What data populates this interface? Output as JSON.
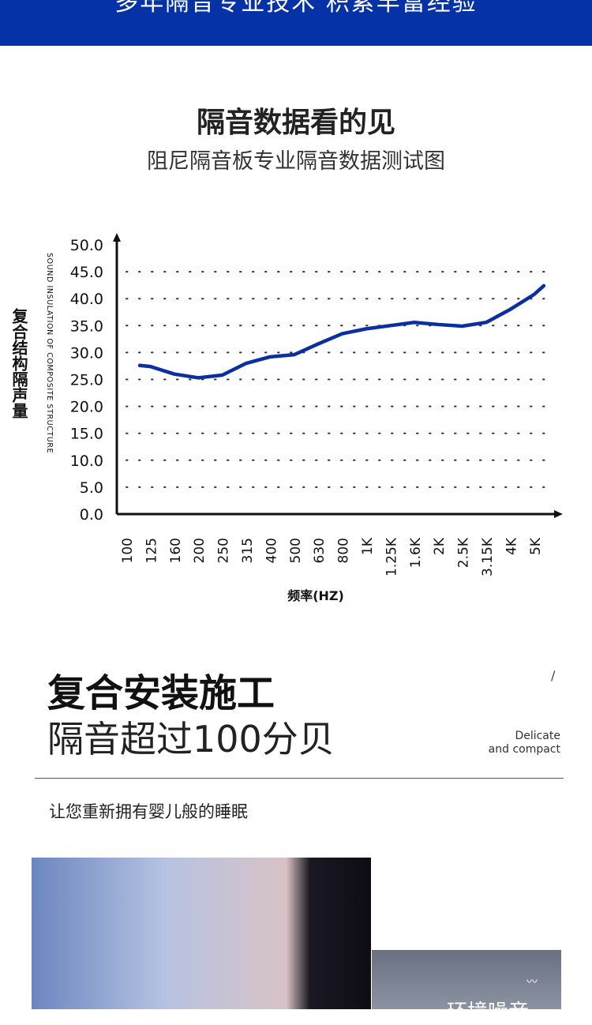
{
  "banner": {
    "text": "多年隔音专业技术 积累丰富经验"
  },
  "header": {
    "title": "隔音数据看的见",
    "subtitle": "阻尼隔音板专业隔音数据测试图"
  },
  "chart_data": {
    "type": "line",
    "title": "隔音数据看的见",
    "ylabel": "复合结构隔声量",
    "ylabel_en": "SOUND INSULATION OF COMPOSITE STRUCTURE",
    "xlabel": "频率(HZ)",
    "ylim": [
      0,
      50
    ],
    "yticks": [
      "0.0",
      "5.0",
      "10.0",
      "15.0",
      "20.0",
      "25.0",
      "30.0",
      "35.0",
      "40.0",
      "45.0",
      "50.0"
    ],
    "categories": [
      "100",
      "125",
      "160",
      "200",
      "250",
      "315",
      "400",
      "500",
      "630",
      "800",
      "1K",
      "1.25K",
      "1.6K",
      "2K",
      "2.5K",
      "3.15K",
      "4K",
      "5K"
    ],
    "grid": "dotted",
    "series": [
      {
        "name": "隔声量",
        "color": "#0a2fa0",
        "x": [
          0.56,
          1,
          2,
          3,
          4,
          5,
          6,
          7,
          8,
          9,
          10,
          11,
          12,
          13,
          14,
          15,
          16,
          17,
          17.4
        ],
        "values": [
          27.6,
          27.4,
          26,
          25.3,
          25.8,
          28,
          29.2,
          29.6,
          31.6,
          33.5,
          34.4,
          35,
          35.6,
          35.2,
          34.9,
          35.6,
          38,
          40.8,
          42.4
        ]
      }
    ]
  },
  "section": {
    "title1": "复合安装施工",
    "title2": "隔音超过100分贝",
    "tag_line1": "Delicate",
    "tag_line2": "and compact",
    "subtitle": "让您重新拥有婴儿般的睡眠",
    "photo_caption": "环境噪音"
  }
}
